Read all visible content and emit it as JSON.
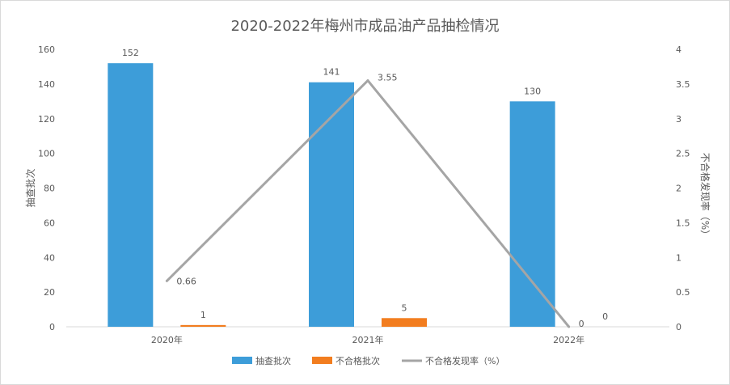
{
  "chart_data": {
    "type": "bar",
    "title": "2020-2022年梅州市成品油产品抽检情况",
    "categories": [
      "2020年",
      "2021年",
      "2022年"
    ],
    "series": [
      {
        "name": "抽查批次",
        "type": "bar",
        "axis": "left",
        "color": "#3d9dd9",
        "values": [
          152,
          141,
          130
        ]
      },
      {
        "name": "不合格批次",
        "type": "bar",
        "axis": "left",
        "color": "#f27d1f",
        "values": [
          1,
          5,
          0
        ]
      },
      {
        "name": "不合格发现率（%）",
        "type": "line",
        "axis": "right",
        "color": "#a5a5a5",
        "values": [
          0.66,
          3.55,
          0
        ]
      }
    ],
    "ylabel": "抽查批次",
    "y2label": "不合格发现率（%）",
    "ylim": [
      0,
      160
    ],
    "y2lim": [
      0,
      4
    ],
    "yticks": [
      0,
      20,
      40,
      60,
      80,
      100,
      120,
      140,
      160
    ],
    "y2ticks": [
      0,
      0.5,
      1,
      1.5,
      2,
      2.5,
      3,
      3.5,
      4
    ],
    "grid": false,
    "legend_position": "bottom"
  }
}
